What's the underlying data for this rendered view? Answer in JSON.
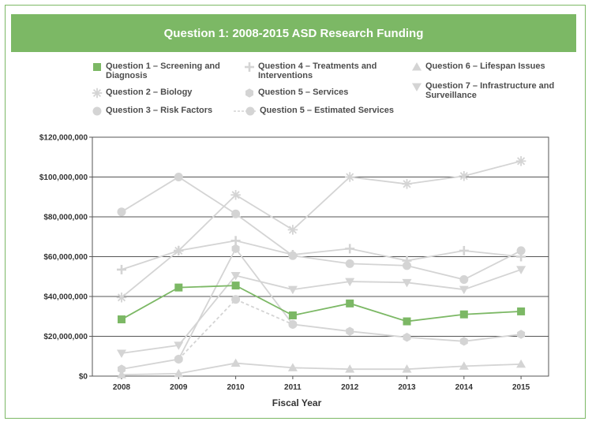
{
  "chart_data": {
    "type": "line",
    "title": "Question 1: 2008-2015 ASD Research Funding",
    "xlabel": "Fiscal Year",
    "ylabel": "",
    "ylim": [
      0,
      120000000
    ],
    "yticks": [
      0,
      20000000,
      40000000,
      60000000,
      80000000,
      100000000,
      120000000
    ],
    "ytick_labels": [
      "$0",
      "$20,000,000",
      "$40,000,000",
      "$60,000,000",
      "$80,000,000",
      "$100,000,000",
      "$120,000,000"
    ],
    "categories": [
      "2008",
      "2009",
      "2010",
      "2011",
      "2012",
      "2013",
      "2014",
      "2015"
    ],
    "series": [
      {
        "key": "q2",
        "name": "Question 2 – Biology",
        "marker": "asterisk",
        "dash": false,
        "color": "#d4d4d4",
        "values": [
          39500000,
          63000000,
          91000000,
          73500000,
          100000000,
          96500000,
          100500000,
          108000000
        ]
      },
      {
        "key": "q3",
        "name": "Question 3 – Risk Factors",
        "marker": "circle",
        "dash": false,
        "color": "#d4d4d4",
        "values": [
          82500000,
          100000000,
          81500000,
          60500000,
          56500000,
          55500000,
          48500000,
          63000000
        ]
      },
      {
        "key": "q4",
        "name": "Question 4 – Treatments and\nInterventions",
        "marker": "plus",
        "dash": false,
        "color": "#d4d4d4",
        "values": [
          53500000,
          63000000,
          68000000,
          61000000,
          64000000,
          58000000,
          63000000,
          60000000
        ]
      },
      {
        "key": "q5",
        "name": "Question 5 – Services",
        "marker": "hexagon",
        "dash": false,
        "color": "#d4d4d4",
        "values": [
          3500000,
          8500000,
          64000000,
          26000000,
          22500000,
          19500000,
          17500000,
          21000000
        ]
      },
      {
        "key": "q5e",
        "name": "Question 5 – Estimated Services",
        "marker": "circle",
        "dash": true,
        "color": "#d4d4d4",
        "values": [
          null,
          8500000,
          38500000,
          26000000,
          null,
          null,
          null,
          null
        ]
      },
      {
        "key": "q6",
        "name": "Question 6 – Lifespan Issues",
        "marker": "triangle-up",
        "dash": false,
        "color": "#d4d4d4",
        "values": [
          700000,
          1300000,
          6500000,
          4200000,
          3500000,
          3500000,
          5000000,
          6000000
        ]
      },
      {
        "key": "q7",
        "name": "Question 7 – Infrastructure and\nSurveillance",
        "marker": "triangle-down",
        "dash": false,
        "color": "#d4d4d4",
        "values": [
          11500000,
          15500000,
          50500000,
          43500000,
          47500000,
          47000000,
          43500000,
          53500000
        ]
      },
      {
        "key": "q1",
        "name": "Question 1 – Screening and\nDiagnosis",
        "marker": "square",
        "dash": false,
        "color": "#7cb865",
        "values": [
          28500000,
          44500000,
          45500000,
          30500000,
          36500000,
          27500000,
          31000000,
          32500000
        ]
      }
    ],
    "legend": [
      {
        "key": "q1",
        "label": "Question 1 – Screening and\nDiagnosis"
      },
      {
        "key": "q2",
        "label": "Question 2 – Biology"
      },
      {
        "key": "q3",
        "label": "Question 3 – Risk Factors"
      },
      {
        "key": "q4",
        "label": "Question 4 – Treatments and\nInterventions"
      },
      {
        "key": "q5",
        "label": "Question 5 – Services"
      },
      {
        "key": "q5e",
        "label": "Question 5 – Estimated Services"
      },
      {
        "key": "q6",
        "label": "Question 6 – Lifespan Issues"
      },
      {
        "key": "q7",
        "label": "Question 7 – Infrastructure and\nSurveillance"
      }
    ],
    "grid": true,
    "legend_position": "top"
  },
  "colors": {
    "accent": "#7cb865",
    "muted_series": "#d4d4d4",
    "gridline": "#555555"
  }
}
